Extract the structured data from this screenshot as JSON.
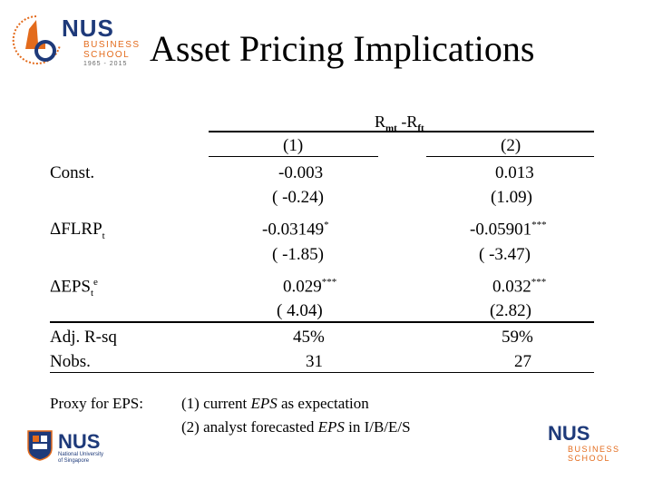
{
  "slide": {
    "title": "Asset Pricing Implications"
  },
  "logos": {
    "top": {
      "org": "NUS",
      "line1": "BUSINESS",
      "line2": "SCHOOL",
      "years": "1965 - 2015"
    },
    "bottom_left": {
      "org": "NUS",
      "univ_line1": "National University",
      "univ_line2": "of Singapore"
    },
    "bottom_right": {
      "org": "NUS",
      "line1": "BUSINESS",
      "line2": "SCHOOL"
    }
  },
  "table": {
    "dependent_variable": {
      "main": "R",
      "sub": "mt",
      "rest": " -R",
      "sub2": "ft"
    },
    "columns": [
      "(1)",
      "(2)"
    ],
    "rows": [
      {
        "label": "Const.",
        "values": [
          "-0.003",
          "0.013"
        ],
        "tstats": [
          "( -0.24)",
          "(1.09)"
        ],
        "stars": [
          "",
          ""
        ]
      },
      {
        "label_main": "ΔFLRP",
        "label_sub": "t",
        "values": [
          "-0.03149",
          "-0.05901"
        ],
        "tstats": [
          "( -1.85)",
          "( -3.47)"
        ],
        "stars": [
          "*",
          "***"
        ]
      },
      {
        "label_main": "ΔEPS",
        "label_sub": "t",
        "label_sup": "e",
        "values": [
          "0.029",
          "0.032"
        ],
        "tstats": [
          "( 4.04)",
          "(2.82)"
        ],
        "stars": [
          "***",
          "***"
        ]
      }
    ],
    "stats": [
      {
        "label": "Adj. R-sq",
        "values": [
          "45%",
          "59%"
        ]
      },
      {
        "label": "Nobs.",
        "values": [
          "31",
          "27"
        ]
      }
    ]
  },
  "proxy": {
    "label": "Proxy for EPS:",
    "line1_pre": "(1) current ",
    "line1_em": "EPS",
    "line1_post": " as expectation",
    "line2_pre": "(2) analyst forecasted ",
    "line2_em": "EPS",
    "line2_post": " in I/B/E/S"
  }
}
